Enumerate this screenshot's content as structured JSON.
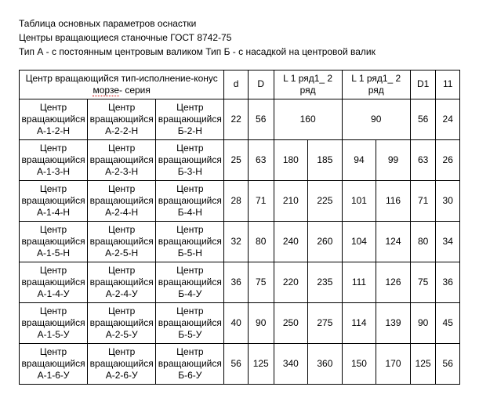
{
  "heading": {
    "line1": "Таблица основных параметров оснастки",
    "line2": "Центры вращающиеся станочные ГОСТ 8742-75",
    "line3": "Тип А - с постоянным центровым валиком Тип Б - с насадкой на центровой валик"
  },
  "headers": {
    "main": "Центр вращающийся тип-исполнение-конус ",
    "main_spell": "морзе",
    "main_after": "- серия",
    "d": "d",
    "D": "D",
    "L1": "L 1 ряд1_ 2 ряд",
    "L2": "L 1 ряд1_ 2 ряд",
    "D1": "D1",
    "last": "11"
  },
  "rows": [
    {
      "c1": "Центр вращающийся А-1-2-Н",
      "c2": "Центр вращающийся А-2-2-Н",
      "c3": "Центр вращающийся Б-2-Н",
      "d": "22",
      "D": "56",
      "L1a": "160",
      "L1b": null,
      "L2a": "90",
      "L2b": null,
      "D1": "56",
      "last": "24"
    },
    {
      "c1": "Центр вращающийся А-1-3-Н",
      "c2": "Центр вращающийся А-2-3-Н",
      "c3": "Центр вращающийся Б-3-Н",
      "d": "25",
      "D": "63",
      "L1a": "180",
      "L1b": "185",
      "L2a": "94",
      "L2b": "99",
      "D1": "63",
      "last": "26"
    },
    {
      "c1": "Центр вращающийся А-1-4-Н",
      "c2": "Центр вращающийся А-2-4-Н",
      "c3": "Центр вращающийся Б-4-Н",
      "d": "28",
      "D": "71",
      "L1a": "210",
      "L1b": "225",
      "L2a": "101",
      "L2b": "116",
      "D1": "71",
      "last": "30"
    },
    {
      "c1": "Центр вращающийся А-1-5-Н",
      "c2": "Центр вращающийся А-2-5-Н",
      "c3": "Центр вращающийся Б-5-Н",
      "d": "32",
      "D": "80",
      "L1a": "240",
      "L1b": "260",
      "L2a": "104",
      "L2b": "124",
      "D1": "80",
      "last": "34"
    },
    {
      "c1": "Центр вращающийся А-1-4-У",
      "c2": "Центр вращающийся А-2-4-У",
      "c3": "Центр вращающийся Б-4-У",
      "d": "36",
      "D": "75",
      "L1a": "220",
      "L1b": "235",
      "L2a": "111",
      "L2b": "126",
      "D1": "75",
      "last": "36"
    },
    {
      "c1": "Центр вращающийся А-1-5-У",
      "c2": "Центр вращающийся А-2-5-У",
      "c3": "Центр вращающийся Б-5-У",
      "d": "40",
      "D": "90",
      "L1a": "250",
      "L1b": "275",
      "L2a": "114",
      "L2b": "139",
      "D1": "90",
      "last": "45"
    },
    {
      "c1": "Центр вращающийся А-1-6-У",
      "c2": "Центр вращающийся А-2-6-У",
      "c3": "Центр вращающийся Б-6-У",
      "d": "56",
      "D": "125",
      "L1a": "340",
      "L1b": "360",
      "L2a": "150",
      "L2b": "170",
      "D1": "125",
      "last": "56"
    }
  ]
}
